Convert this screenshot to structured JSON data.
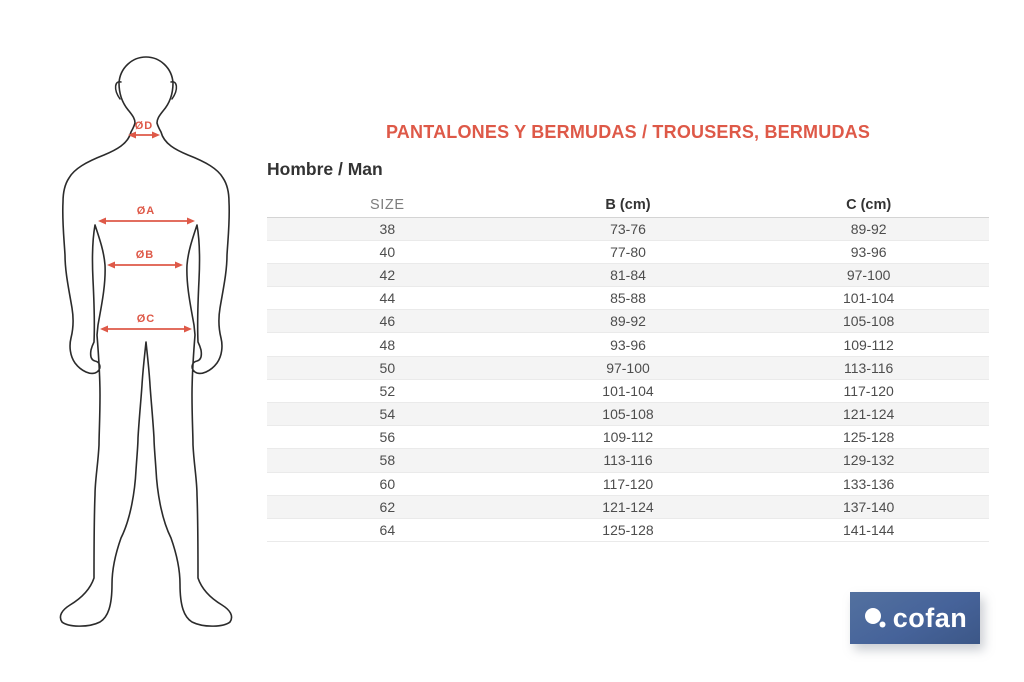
{
  "page": {
    "title": "PANTALONES Y BERMUDAS / TROUSERS, BERMUDAS",
    "subtitle": "Hombre / Man"
  },
  "diagram": {
    "measures": [
      {
        "label": "ØD"
      },
      {
        "label": "ØA"
      },
      {
        "label": "ØB"
      },
      {
        "label": "ØC"
      }
    ]
  },
  "table": {
    "columns": [
      "SIZE",
      "B (cm)",
      "C (cm)"
    ],
    "rows": [
      [
        "38",
        "73-76",
        "89-92"
      ],
      [
        "40",
        "77-80",
        "93-96"
      ],
      [
        "42",
        "81-84",
        "97-100"
      ],
      [
        "44",
        "85-88",
        "101-104"
      ],
      [
        "46",
        "89-92",
        "105-108"
      ],
      [
        "48",
        "93-96",
        "109-112"
      ],
      [
        "50",
        "97-100",
        "113-116"
      ],
      [
        "52",
        "101-104",
        "117-120"
      ],
      [
        "54",
        "105-108",
        "121-124"
      ],
      [
        "56",
        "109-112",
        "125-128"
      ],
      [
        "58",
        "113-116",
        "129-132"
      ],
      [
        "60",
        "117-120",
        "133-136"
      ],
      [
        "62",
        "121-124",
        "137-140"
      ],
      [
        "64",
        "125-128",
        "141-144"
      ]
    ]
  },
  "logo": {
    "text": "cofan"
  },
  "colors": {
    "accent": "#de5948",
    "text_dark": "#333333",
    "stripe": "#f4f4f4",
    "logo_blue": "#46639a"
  }
}
